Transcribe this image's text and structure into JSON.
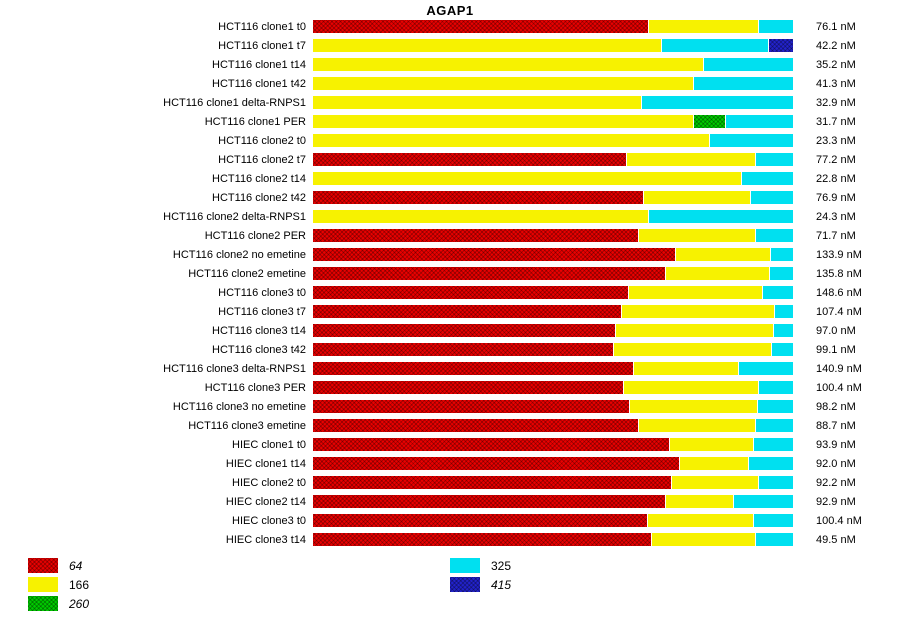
{
  "chart_data": {
    "type": "bar",
    "orientation": "horizontal",
    "stacked": true,
    "title": "AGAP1",
    "unit": "nM",
    "legend_position": "bottom",
    "grid": false,
    "colors": {
      "64": "#ea0000",
      "166": "#f7f200",
      "260": "#00cc00",
      "325": "#00e0f0",
      "415": "#2222cc"
    },
    "patterned_keys": [
      "64",
      "260",
      "415"
    ],
    "legend_columns": [
      [
        {
          "label": "64",
          "key": "64",
          "italic": true
        },
        {
          "label": "166",
          "key": "166",
          "italic": false
        },
        {
          "label": "260",
          "key": "260",
          "italic": true
        }
      ],
      [
        {
          "label": "325",
          "key": "325",
          "italic": false
        },
        {
          "label": "415",
          "key": "415",
          "italic": true
        }
      ]
    ],
    "rows": [
      {
        "label": "HCT116 clone1 t0",
        "value": "76.1 nM",
        "segments": [
          {
            "key": "64",
            "pct": 69.8
          },
          {
            "key": "166",
            "pct": 22.9
          },
          {
            "key": "325",
            "pct": 7.3
          }
        ]
      },
      {
        "label": "HCT116 clone1 t7",
        "value": "42.2 nM",
        "segments": [
          {
            "key": "166",
            "pct": 72.5
          },
          {
            "key": "325",
            "pct": 22.3
          },
          {
            "key": "415",
            "pct": 5.2
          }
        ]
      },
      {
        "label": "HCT116 clone1 t14",
        "value": "35.2 nM",
        "segments": [
          {
            "key": "166",
            "pct": 81.3
          },
          {
            "key": "325",
            "pct": 18.7
          }
        ]
      },
      {
        "label": "HCT116 clone1 t42",
        "value": "41.3 nM",
        "segments": [
          {
            "key": "166",
            "pct": 79.2
          },
          {
            "key": "325",
            "pct": 20.8
          }
        ]
      },
      {
        "label": "HCT116 clone1 delta-RNPS1",
        "value": "32.9 nM",
        "segments": [
          {
            "key": "166",
            "pct": 68.3
          },
          {
            "key": "325",
            "pct": 31.7
          }
        ]
      },
      {
        "label": "HCT116 clone1 PER",
        "value": "31.7 nM",
        "segments": [
          {
            "key": "166",
            "pct": 79.2
          },
          {
            "key": "260",
            "pct": 6.7
          },
          {
            "key": "325",
            "pct": 14.1
          }
        ]
      },
      {
        "label": "HCT116 clone2 t0",
        "value": "23.3 nM",
        "segments": [
          {
            "key": "166",
            "pct": 82.5
          },
          {
            "key": "325",
            "pct": 17.5
          }
        ]
      },
      {
        "label": "HCT116 clone2 t7",
        "value": "77.2 nM",
        "segments": [
          {
            "key": "64",
            "pct": 65.2
          },
          {
            "key": "166",
            "pct": 26.9
          },
          {
            "key": "325",
            "pct": 7.9
          }
        ]
      },
      {
        "label": "HCT116 clone2 t14",
        "value": "22.8 nM",
        "segments": [
          {
            "key": "166",
            "pct": 89.2
          },
          {
            "key": "325",
            "pct": 10.8
          }
        ]
      },
      {
        "label": "HCT116 clone2 t42",
        "value": "76.9 nM",
        "segments": [
          {
            "key": "64",
            "pct": 68.8
          },
          {
            "key": "166",
            "pct": 22.3
          },
          {
            "key": "325",
            "pct": 8.9
          }
        ]
      },
      {
        "label": "HCT116 clone2 delta-RNPS1",
        "value": "24.3 nM",
        "segments": [
          {
            "key": "166",
            "pct": 69.8
          },
          {
            "key": "325",
            "pct": 30.2
          }
        ]
      },
      {
        "label": "HCT116 clone2 PER",
        "value": "71.7 nM",
        "segments": [
          {
            "key": "64",
            "pct": 67.7
          },
          {
            "key": "166",
            "pct": 24.4
          },
          {
            "key": "325",
            "pct": 7.9
          }
        ]
      },
      {
        "label": "HCT116 clone2 no emetine",
        "value": "133.9 nM",
        "segments": [
          {
            "key": "64",
            "pct": 75.4
          },
          {
            "key": "166",
            "pct": 19.8
          },
          {
            "key": "325",
            "pct": 4.8
          }
        ]
      },
      {
        "label": "HCT116 clone2 emetine",
        "value": "135.8 nM",
        "segments": [
          {
            "key": "64",
            "pct": 73.3
          },
          {
            "key": "166",
            "pct": 21.7
          },
          {
            "key": "325",
            "pct": 5.0
          }
        ]
      },
      {
        "label": "HCT116 clone3 t0",
        "value": "148.6 nM",
        "segments": [
          {
            "key": "64",
            "pct": 65.6
          },
          {
            "key": "166",
            "pct": 27.9
          },
          {
            "key": "325",
            "pct": 6.5
          }
        ]
      },
      {
        "label": "HCT116 clone3 t7",
        "value": "107.4 nM",
        "segments": [
          {
            "key": "64",
            "pct": 64.2
          },
          {
            "key": "166",
            "pct": 31.8
          },
          {
            "key": "325",
            "pct": 4.0
          }
        ]
      },
      {
        "label": "HCT116 clone3 t14",
        "value": "97.0 nM",
        "segments": [
          {
            "key": "64",
            "pct": 62.9
          },
          {
            "key": "166",
            "pct": 32.9
          },
          {
            "key": "325",
            "pct": 4.2
          }
        ]
      },
      {
        "label": "HCT116 clone3 t42",
        "value": "99.1 nM",
        "segments": [
          {
            "key": "64",
            "pct": 62.5
          },
          {
            "key": "166",
            "pct": 33.0
          },
          {
            "key": "325",
            "pct": 4.5
          }
        ]
      },
      {
        "label": "HCT116 clone3 delta-RNPS1",
        "value": "140.9 nM",
        "segments": [
          {
            "key": "64",
            "pct": 66.7
          },
          {
            "key": "166",
            "pct": 21.8
          },
          {
            "key": "325",
            "pct": 11.5
          }
        ]
      },
      {
        "label": "HCT116 clone3 PER",
        "value": "100.4 nM",
        "segments": [
          {
            "key": "64",
            "pct": 64.6
          },
          {
            "key": "166",
            "pct": 28.1
          },
          {
            "key": "325",
            "pct": 7.3
          }
        ]
      },
      {
        "label": "HCT116 clone3 no emetine",
        "value": "98.2 nM",
        "segments": [
          {
            "key": "64",
            "pct": 65.8
          },
          {
            "key": "166",
            "pct": 26.7
          },
          {
            "key": "325",
            "pct": 7.5
          }
        ]
      },
      {
        "label": "HCT116 clone3 emetine",
        "value": "88.7 nM",
        "segments": [
          {
            "key": "64",
            "pct": 67.7
          },
          {
            "key": "166",
            "pct": 24.4
          },
          {
            "key": "325",
            "pct": 7.9
          }
        ]
      },
      {
        "label": "HIEC clone1 t0",
        "value": "93.9 nM",
        "segments": [
          {
            "key": "64",
            "pct": 74.2
          },
          {
            "key": "166",
            "pct": 17.5
          },
          {
            "key": "325",
            "pct": 8.3
          }
        ]
      },
      {
        "label": "HIEC clone1 t14",
        "value": "92.0 nM",
        "segments": [
          {
            "key": "64",
            "pct": 76.3
          },
          {
            "key": "166",
            "pct": 14.4
          },
          {
            "key": "325",
            "pct": 9.3
          }
        ]
      },
      {
        "label": "HIEC clone2 t0",
        "value": "92.2 nM",
        "segments": [
          {
            "key": "64",
            "pct": 74.6
          },
          {
            "key": "166",
            "pct": 18.1
          },
          {
            "key": "325",
            "pct": 7.3
          }
        ]
      },
      {
        "label": "HIEC clone2 t14",
        "value": "92.9 nM",
        "segments": [
          {
            "key": "64",
            "pct": 73.3
          },
          {
            "key": "166",
            "pct": 14.2
          },
          {
            "key": "325",
            "pct": 12.5
          }
        ]
      },
      {
        "label": "HIEC clone3 t0",
        "value": "100.4 nM",
        "segments": [
          {
            "key": "64",
            "pct": 69.6
          },
          {
            "key": "166",
            "pct": 22.1
          },
          {
            "key": "325",
            "pct": 8.3
          }
        ]
      },
      {
        "label": "HIEC clone3 t14",
        "value": "49.5 nM",
        "segments": [
          {
            "key": "64",
            "pct": 70.4
          },
          {
            "key": "166",
            "pct": 21.7
          },
          {
            "key": "325",
            "pct": 7.9
          }
        ]
      }
    ]
  }
}
